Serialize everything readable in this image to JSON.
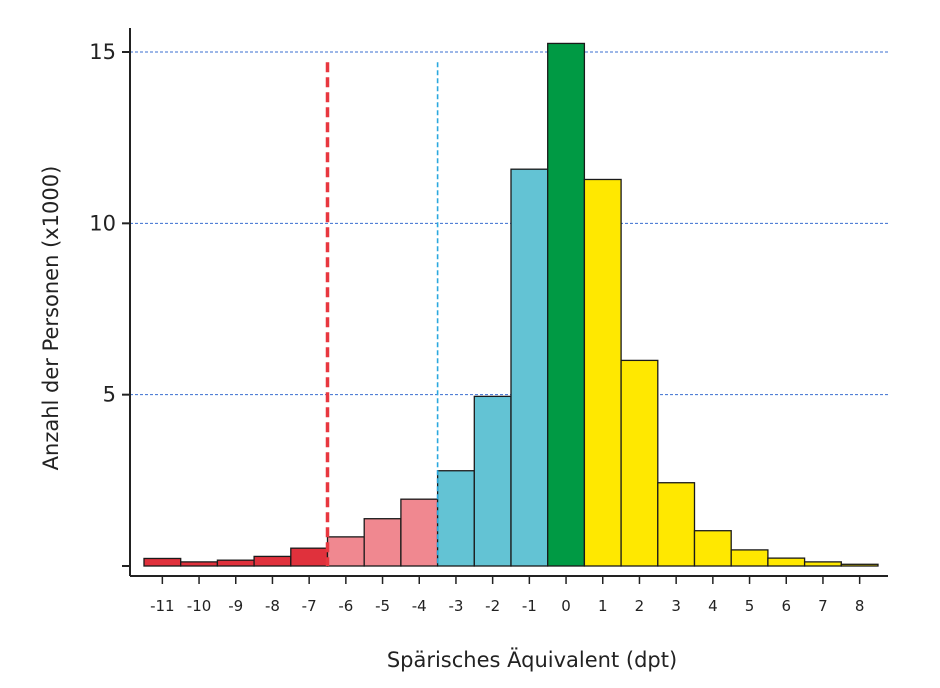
{
  "chart_data": {
    "type": "bar",
    "title": "",
    "xlabel": "Spärisches Äquivalent (dpt)",
    "ylabel": "Anzahl der Personen (x1000)",
    "ylim": [
      0,
      15.5
    ],
    "xlim": [
      -11.5,
      8.5
    ],
    "yticks": [
      0,
      5,
      10,
      15
    ],
    "ytick_labels": [
      "",
      "5",
      "10",
      "15"
    ],
    "xtick_labels": [
      "-11",
      "-10",
      "-9",
      "-8",
      "-7",
      "-6",
      "-5",
      "-4",
      "-3",
      "-2",
      "-1",
      "0",
      "1",
      "2",
      "3",
      "4",
      "5",
      "6",
      "7",
      "8"
    ],
    "grid": "horizontal dashed at 5, 10, 15",
    "bars": [
      {
        "x0": -11.5,
        "x1": -10.5,
        "value": 0.22,
        "color": "#e0313c"
      },
      {
        "x0": -10.5,
        "x1": -9.5,
        "value": 0.12,
        "color": "#e0313c"
      },
      {
        "x0": -9.5,
        "x1": -8.5,
        "value": 0.17,
        "color": "#e0313c"
      },
      {
        "x0": -8.5,
        "x1": -7.5,
        "value": 0.28,
        "color": "#e0313c"
      },
      {
        "x0": -7.5,
        "x1": -6.5,
        "value": 0.52,
        "color": "#e0313c"
      },
      {
        "x0": -6.5,
        "x1": -5.5,
        "value": 0.85,
        "color": "#f08890"
      },
      {
        "x0": -5.5,
        "x1": -4.5,
        "value": 1.38,
        "color": "#f08890"
      },
      {
        "x0": -4.5,
        "x1": -3.5,
        "value": 1.95,
        "color": "#f08890"
      },
      {
        "x0": -3.5,
        "x1": -2.5,
        "value": 2.78,
        "color": "#63c3d4"
      },
      {
        "x0": -2.5,
        "x1": -1.5,
        "value": 4.95,
        "color": "#63c3d4"
      },
      {
        "x0": -1.5,
        "x1": -0.5,
        "value": 11.58,
        "color": "#63c3d4"
      },
      {
        "x0": -0.5,
        "x1": 0.5,
        "value": 15.25,
        "color": "#009a44"
      },
      {
        "x0": 0.5,
        "x1": 1.5,
        "value": 11.28,
        "color": "#ffe800"
      },
      {
        "x0": 1.5,
        "x1": 2.5,
        "value": 6.0,
        "color": "#ffe800"
      },
      {
        "x0": 2.5,
        "x1": 3.5,
        "value": 2.43,
        "color": "#ffe800"
      },
      {
        "x0": 3.5,
        "x1": 4.5,
        "value": 1.03,
        "color": "#ffe800"
      },
      {
        "x0": 4.5,
        "x1": 5.5,
        "value": 0.47,
        "color": "#ffe800"
      },
      {
        "x0": 5.5,
        "x1": 6.5,
        "value": 0.23,
        "color": "#ffe800"
      },
      {
        "x0": 6.5,
        "x1": 7.5,
        "value": 0.12,
        "color": "#ffe800"
      },
      {
        "x0": 7.5,
        "x1": 8.5,
        "value": 0.05,
        "color": "#ffe800"
      }
    ],
    "reference_lines": [
      {
        "x": -6.5,
        "style": "thick-dashed",
        "color": "#e8373f"
      },
      {
        "x": -3.5,
        "style": "thin-dashed",
        "color": "#2aa8df"
      }
    ],
    "colors": {
      "grid": "#3b6fd1",
      "axis": "#222222",
      "bar_outline": "#1a1a1a"
    }
  }
}
